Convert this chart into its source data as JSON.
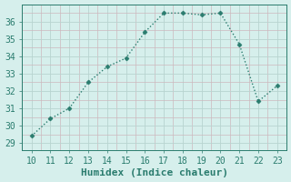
{
  "x": [
    10,
    11,
    12,
    13,
    14,
    15,
    16,
    17,
    18,
    19,
    20,
    21,
    22,
    23
  ],
  "y": [
    29.4,
    30.4,
    31.0,
    32.5,
    33.4,
    33.9,
    35.4,
    36.5,
    36.5,
    36.4,
    36.5,
    34.7,
    31.4,
    32.3
  ],
  "line_color": "#2a7c6e",
  "marker": "D",
  "marker_size": 2.5,
  "line_width": 1.0,
  "bg_color": "#d6efec",
  "grid_major_color": "#b8d4d0",
  "grid_minor_color": "#cdb8be",
  "xlabel": "Humidex (Indice chaleur)",
  "xlabel_fontsize": 8,
  "xlabel_color": "#2a7c6e",
  "tick_label_color": "#2a7c6e",
  "xlim": [
    9.5,
    23.5
  ],
  "ylim": [
    28.6,
    37.0
  ],
  "xticks": [
    10,
    11,
    12,
    13,
    14,
    15,
    16,
    17,
    18,
    19,
    20,
    21,
    22,
    23
  ],
  "yticks": [
    29,
    30,
    31,
    32,
    33,
    34,
    35,
    36
  ]
}
